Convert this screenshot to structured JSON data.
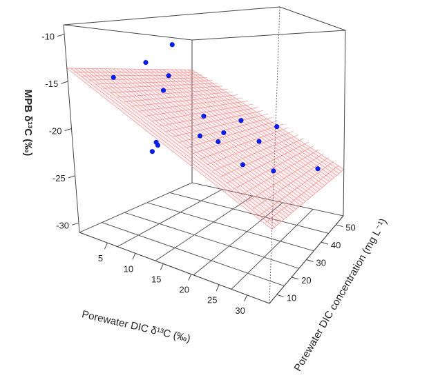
{
  "chart_data": {
    "type": "scatter3d",
    "title": "",
    "x_label": "Porewater DIC δ¹³C (‰)",
    "y_label": "Porewater DIC concentration (mg L⁻¹)",
    "z_label": "MPB δ¹³C (‰)",
    "x_ticks": [
      "5",
      "10",
      "15",
      "20",
      "25",
      "30"
    ],
    "y_ticks": [
      "10",
      "20",
      "30",
      "40",
      "50"
    ],
    "z_ticks": [
      "-10",
      "-15",
      "-20",
      "-25",
      "-30"
    ],
    "x_range": [
      0,
      34
    ],
    "y_range": [
      5,
      55
    ],
    "z_range": [
      -31,
      -9
    ],
    "point_color": "#0a1ee6",
    "plane_color": "#f08080",
    "points": [
      {
        "x": 1.5,
        "y": 20,
        "z": -14.6
      },
      {
        "x": 6.5,
        "y": 22,
        "z": -12.9
      },
      {
        "x": 10.5,
        "y": 24,
        "z": -11.0
      },
      {
        "x": 12.0,
        "y": 18,
        "z": -14.3
      },
      {
        "x": 9.5,
        "y": 22,
        "z": -15.9
      },
      {
        "x": 16.0,
        "y": 24,
        "z": -18.4
      },
      {
        "x": 11.0,
        "y": 14,
        "z": -20.9
      },
      {
        "x": 12.0,
        "y": 12,
        "z": -21.0
      },
      {
        "x": 11.0,
        "y": 12,
        "z": -21.7
      },
      {
        "x": 16.0,
        "y": 22,
        "z": -20.3
      },
      {
        "x": 19.0,
        "y": 26,
        "z": -20.0
      },
      {
        "x": 20.0,
        "y": 20,
        "z": -20.5
      },
      {
        "x": 19.5,
        "y": 34,
        "z": -19.1
      },
      {
        "x": 26.5,
        "y": 34,
        "z": -19.4
      },
      {
        "x": 25.0,
        "y": 28,
        "z": -20.6
      },
      {
        "x": 24.5,
        "y": 20,
        "z": -22.3
      },
      {
        "x": 29.0,
        "y": 24,
        "z": -22.8
      },
      {
        "x": 33.0,
        "y": 40,
        "z": -23.7
      }
    ],
    "regression_plane": {
      "intercept": -13.6,
      "slope_x": -0.35,
      "slope_y": 0.0
    }
  }
}
